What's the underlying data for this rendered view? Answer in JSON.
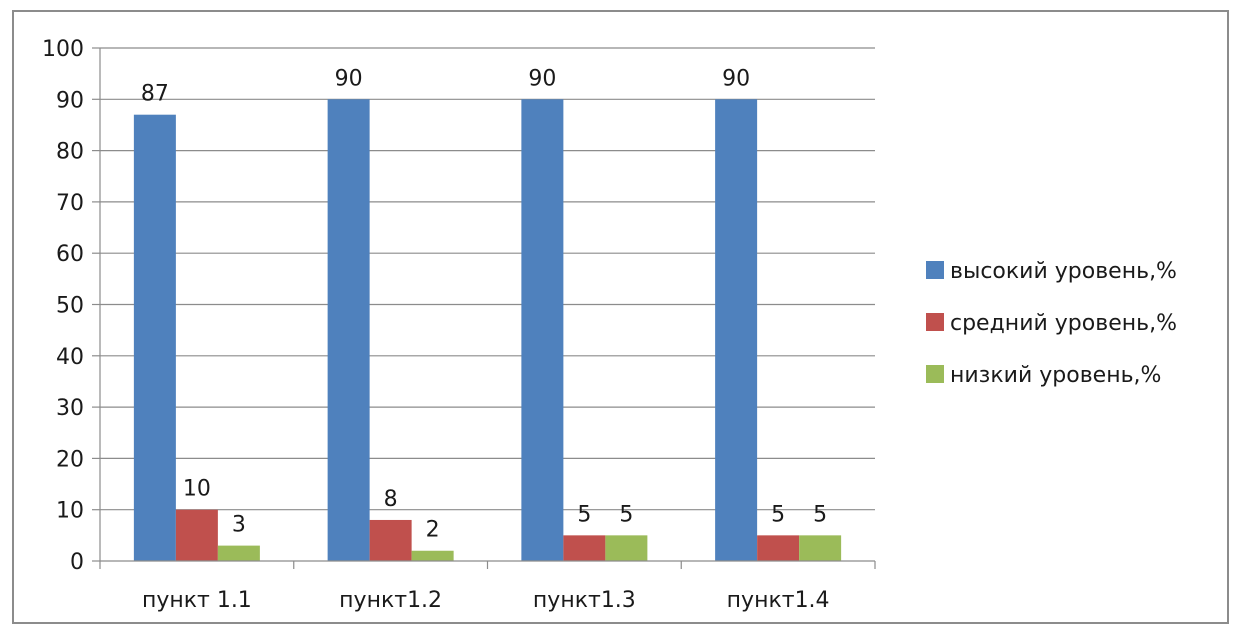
{
  "chart_data": {
    "type": "bar",
    "categories": [
      "пункт 1.1",
      "пункт1.2",
      "пункт1.3",
      "пункт1.4"
    ],
    "series": [
      {
        "name": "высокий уровень,%",
        "values": [
          87,
          90,
          90,
          90
        ],
        "color": "#4f81bd"
      },
      {
        "name": "средний уровень,%",
        "values": [
          10,
          8,
          5,
          5
        ],
        "color": "#c0504d"
      },
      {
        "name": "низкий уровень,%",
        "values": [
          3,
          2,
          5,
          5
        ],
        "color": "#9bbb59"
      }
    ],
    "title": "",
    "xlabel": "",
    "ylabel": "",
    "ylim": [
      0,
      100
    ],
    "yticks": [
      "0",
      "10",
      "20",
      "30",
      "40",
      "50",
      "60",
      "70",
      "80",
      "90",
      "100"
    ],
    "grid": true,
    "legend_position": "right",
    "data_labels": true
  }
}
